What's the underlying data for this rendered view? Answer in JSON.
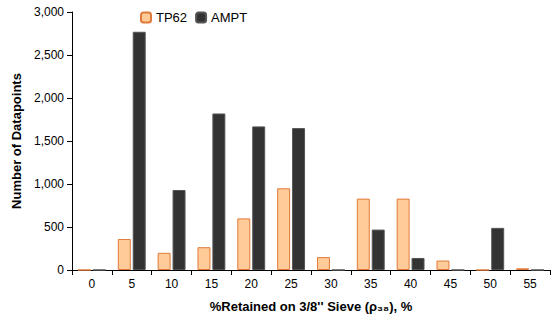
{
  "chart_data": {
    "type": "bar",
    "x_label": "%Retained on 3/8'' Sieve (ρ₃₈), %",
    "y_label": "Number of Datapoints",
    "categories": [
      "0",
      "5",
      "10",
      "15",
      "20",
      "25",
      "30",
      "35",
      "40",
      "45",
      "50",
      "55"
    ],
    "series": [
      {
        "name": "TP62",
        "color": "#ffcc99",
        "values": [
          0,
          360,
          200,
          265,
          600,
          950,
          150,
          830,
          830,
          110,
          0,
          20
        ]
      },
      {
        "name": "AMPT",
        "color": "#333333",
        "values": [
          0,
          2770,
          930,
          1820,
          1670,
          1650,
          0,
          470,
          140,
          0,
          490,
          0
        ]
      }
    ],
    "ylim": [
      0,
      3000
    ],
    "yticks": [
      0,
      500,
      1000,
      1500,
      2000,
      2500,
      3000
    ],
    "grid": false,
    "legend": "top-left"
  }
}
